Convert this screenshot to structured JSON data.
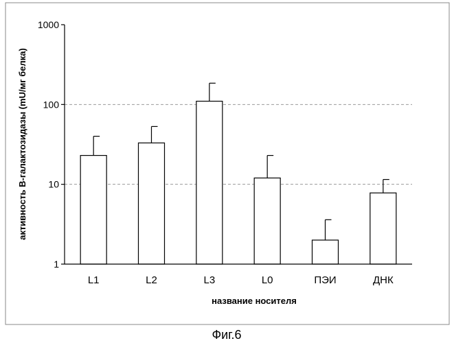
{
  "chart_data": {
    "type": "bar",
    "title": "",
    "xlabel": "название носителя",
    "ylabel": "активность В-галактозидазы (mU/мг белка)",
    "y_scale": "log",
    "ylim": [
      1,
      1000
    ],
    "yticks": [
      1,
      10,
      100,
      1000
    ],
    "ytick_labels": [
      "1",
      "10",
      "100",
      "1000"
    ],
    "gridlines": [
      10,
      100
    ],
    "categories": [
      "L1",
      "L2",
      "L3",
      "L0",
      "ПЭИ",
      "ДНК"
    ],
    "values": [
      23,
      33,
      110,
      12,
      2,
      7.8
    ],
    "error_upper": [
      40,
      53,
      185,
      23,
      3.6,
      11.5
    ],
    "legend": "none"
  },
  "caption": "Фиг.6",
  "colors": {
    "bar_fill": "#ffffff",
    "bar_stroke": "#000000",
    "grid": "#999999",
    "frame": "#888888"
  }
}
